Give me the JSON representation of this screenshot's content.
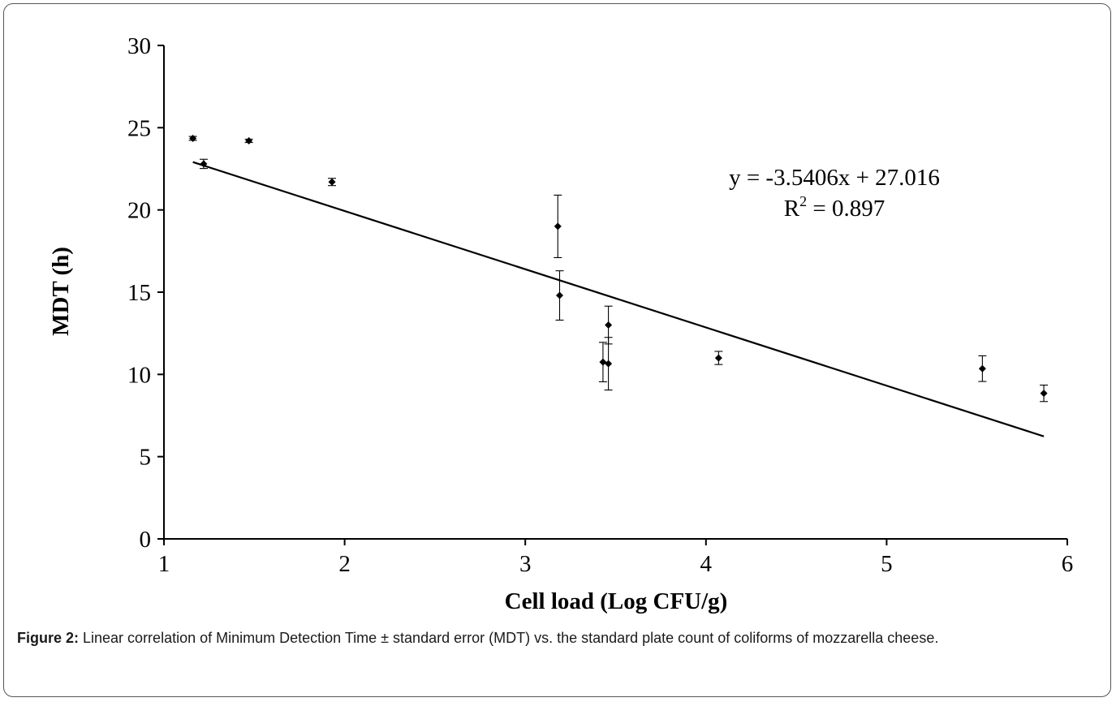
{
  "chart_data": {
    "type": "scatter",
    "xlabel": "Cell load (Log CFU/g)",
    "ylabel": "MDT (h)",
    "xlim": [
      1,
      6
    ],
    "ylim": [
      0,
      30
    ],
    "x_ticks": [
      "1",
      "2",
      "3",
      "4",
      "5",
      "6"
    ],
    "y_ticks": [
      "0",
      "5",
      "10",
      "15",
      "20",
      "25",
      "30"
    ],
    "grid": false,
    "points": [
      {
        "x": 1.16,
        "y": 24.35,
        "err": 0.12
      },
      {
        "x": 1.22,
        "y": 22.8,
        "err": 0.28
      },
      {
        "x": 1.47,
        "y": 24.2,
        "err": 0.1
      },
      {
        "x": 1.93,
        "y": 21.7,
        "err": 0.22
      },
      {
        "x": 3.18,
        "y": 19.0,
        "err": 1.9
      },
      {
        "x": 3.19,
        "y": 14.8,
        "err": 1.5
      },
      {
        "x": 3.43,
        "y": 10.75,
        "err": 1.2
      },
      {
        "x": 3.46,
        "y": 10.65,
        "err": 1.6
      },
      {
        "x": 3.46,
        "y": 13.0,
        "err": 1.15
      },
      {
        "x": 4.07,
        "y": 11.0,
        "err": 0.4
      },
      {
        "x": 5.53,
        "y": 10.35,
        "err": 0.78
      },
      {
        "x": 5.87,
        "y": 8.85,
        "err": 0.5
      }
    ],
    "trendline": {
      "slope": -3.5406,
      "intercept": 27.016,
      "x_range": [
        1.16,
        5.87
      ]
    },
    "annotation_equation": "y = -3.5406x + 27.016",
    "annotation_r_prefix": "R",
    "annotation_r_sup": "2",
    "annotation_r_value": " = 0.897"
  },
  "caption": {
    "label": "Figure 2:",
    "text": " Linear correlation of Minimum Detection Time ± standard error (MDT) vs. the standard plate count of coliforms of mozzarella cheese."
  }
}
